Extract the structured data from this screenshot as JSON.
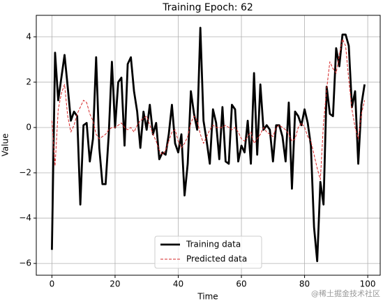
{
  "chart_data": {
    "type": "line",
    "title": "Training Epoch: 62",
    "xlabel": "Time",
    "ylabel": "Value",
    "x": [
      0,
      1,
      2,
      3,
      4,
      5,
      6,
      7,
      8,
      9,
      10,
      11,
      12,
      13,
      14,
      15,
      16,
      17,
      18,
      19,
      20,
      21,
      22,
      23,
      24,
      25,
      26,
      27,
      28,
      29,
      30,
      31,
      32,
      33,
      34,
      35,
      36,
      37,
      38,
      39,
      40,
      41,
      42,
      43,
      44,
      45,
      46,
      47,
      48,
      49,
      50,
      51,
      52,
      53,
      54,
      55,
      56,
      57,
      58,
      59,
      60,
      61,
      62,
      63,
      64,
      65,
      66,
      67,
      68,
      69,
      70,
      71,
      72,
      73,
      74,
      75,
      76,
      77,
      78,
      79,
      80,
      81,
      82,
      83,
      84,
      85,
      86,
      87,
      88,
      89,
      90,
      91,
      92,
      93,
      94,
      95,
      96,
      97,
      98,
      99
    ],
    "series": [
      {
        "name": "Training data",
        "color": "#000000",
        "linestyle": "solid",
        "values": [
          -5.4,
          3.3,
          1.2,
          2.2,
          3.2,
          1.8,
          0.3,
          0.7,
          0.5,
          -3.4,
          0.1,
          0.2,
          -1.5,
          -0.5,
          3.1,
          -0.9,
          -2.5,
          -2.5,
          -0.3,
          2.9,
          0.0,
          2.0,
          2.2,
          -0.8,
          2.8,
          3.1,
          1.6,
          0.7,
          -0.9,
          0.7,
          -0.1,
          1.0,
          -0.3,
          0.2,
          -1.4,
          -1.1,
          -1.2,
          -0.3,
          1.0,
          -0.7,
          -1.1,
          -0.3,
          -3.0,
          -1.6,
          1.6,
          0.6,
          -0.1,
          4.4,
          0.3,
          -0.6,
          -1.6,
          0.8,
          0.2,
          -1.4,
          0.9,
          -1.5,
          -1.6,
          1.0,
          0.8,
          -1.5,
          -0.8,
          -1.1,
          0.3,
          -1.6,
          2.4,
          -1.2,
          1.9,
          -0.1,
          0.1,
          -0.1,
          -1.5,
          0.1,
          0.1,
          -0.4,
          -1.5,
          1.1,
          -2.7,
          0.7,
          0.5,
          0.1,
          0.8,
          0.2,
          -0.8,
          -4.4,
          -5.9,
          -2.4,
          -3.4,
          1.8,
          0.6,
          0.5,
          3.5,
          2.7,
          4.1,
          4.1,
          3.6,
          0.9,
          1.6,
          -1.6,
          1.0,
          1.9
        ]
      },
      {
        "name": "Predicted data",
        "color": "#d62728",
        "linestyle": "dashed",
        "values": [
          0.3,
          -1.7,
          0.8,
          1.5,
          1.9,
          0.5,
          -0.2,
          0.1,
          0.6,
          0.9,
          1.2,
          1.1,
          0.6,
          0.3,
          -0.3,
          -0.5,
          -0.4,
          -0.3,
          -0.1,
          0.0,
          0.0,
          0.1,
          0.2,
          0.0,
          -0.1,
          0.0,
          -0.2,
          0.1,
          0.3,
          0.4,
          0.5,
          0.1,
          -0.3,
          -0.6,
          -1.0,
          -1.2,
          -1.0,
          -0.6,
          -0.2,
          -0.1,
          -0.6,
          -0.9,
          -0.7,
          -0.4,
          0.2,
          0.5,
          0.3,
          -0.3,
          -0.7,
          -0.4,
          -0.1,
          0.1,
          0.0,
          0.0,
          0.0,
          0.1,
          0.0,
          -0.1,
          0.0,
          -0.2,
          -0.5,
          -0.6,
          -0.4,
          -0.2,
          -0.7,
          -0.5,
          -0.3,
          0.0,
          -0.2,
          -0.3,
          -0.4,
          0.0,
          0.1,
          0.0,
          -0.1,
          -0.3,
          -0.6,
          -0.5,
          0.0,
          0.2,
          0.0,
          -0.4,
          -0.6,
          -1.2,
          -1.8,
          -2.3,
          0.2,
          1.7,
          2.9,
          2.6,
          2.4,
          3.2,
          3.9,
          3.6,
          2.1,
          0.8,
          0.0,
          -0.5,
          0.6,
          1.2
        ]
      }
    ],
    "xlim": [
      -4.95,
      103.95
    ],
    "ylim": [
      -6.52,
      4.95
    ],
    "xticks": [
      0,
      20,
      40,
      60,
      80,
      100
    ],
    "yticks": [
      {
        "value": -6,
        "label": "−6"
      },
      {
        "value": -4,
        "label": "−4"
      },
      {
        "value": -2,
        "label": "−2"
      },
      0,
      2,
      4
    ],
    "grid": true,
    "legend": "lower center"
  },
  "watermark": "@稀土掘金技术社区"
}
